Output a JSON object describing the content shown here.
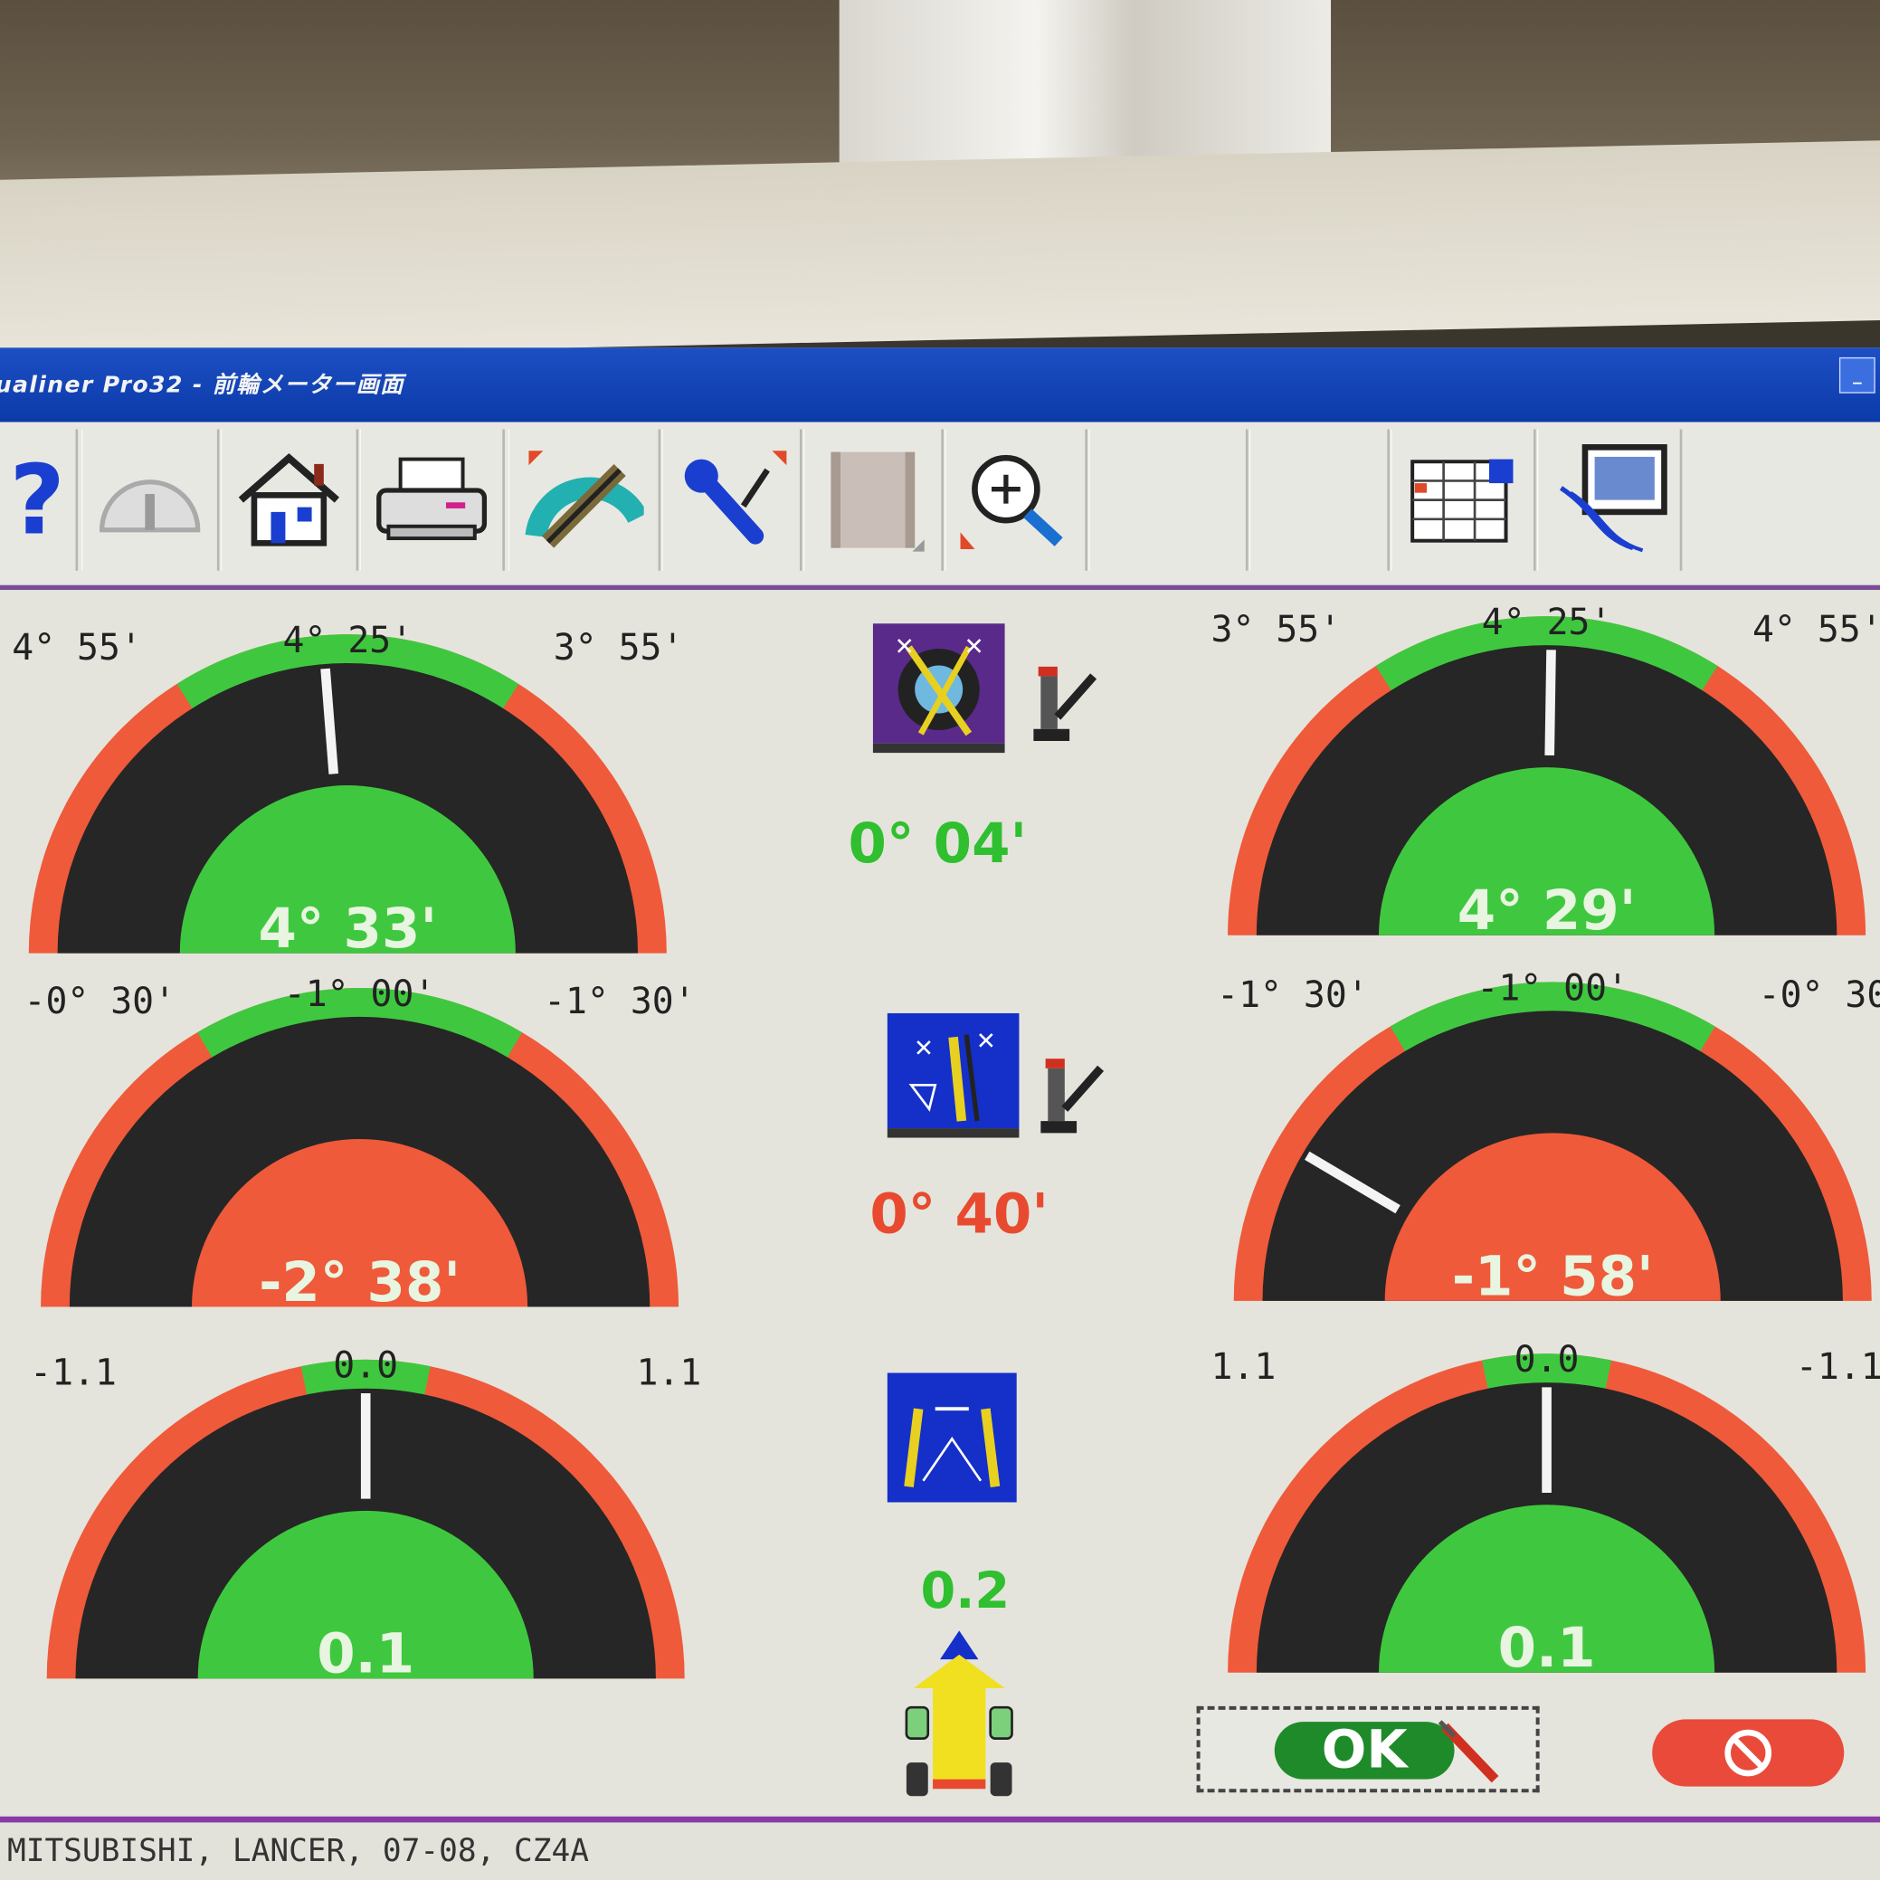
{
  "window": {
    "title": "ualiner Pro32  -  前輪メーター画面"
  },
  "toolbar": {
    "items": [
      {
        "name": "help",
        "icon": "question-mark-icon"
      },
      {
        "name": "meter",
        "icon": "speedometer-icon"
      },
      {
        "name": "home",
        "icon": "home-icon"
      },
      {
        "name": "print",
        "icon": "printer-icon"
      },
      {
        "name": "measure",
        "icon": "protractor-icon"
      },
      {
        "name": "adjust",
        "icon": "wrench-icon"
      },
      {
        "name": "film",
        "icon": "film-icon"
      },
      {
        "name": "zoom",
        "icon": "zoom-in-icon"
      },
      {
        "name": "blank-1",
        "icon": ""
      },
      {
        "name": "blank-2",
        "icon": ""
      },
      {
        "name": "spreadsheet",
        "icon": "spreadsheet-icon"
      },
      {
        "name": "monitor",
        "icon": "monitor-icon"
      }
    ]
  },
  "colors": {
    "in_tolerance": "#3fc83f",
    "out_of_tolerance": "#ef5a3a",
    "dial": "#262626",
    "title_bar": "#1546b8",
    "divider": "#8a3aa6"
  },
  "gauges": [
    {
      "id": "caster-left",
      "label_left": "4° 55'",
      "label_center": "4° 25'",
      "label_right": "3° 55'",
      "value": "4° 33'",
      "status": "green",
      "needle_position": -0.05,
      "tolerance_halfspan": 0.36
    },
    {
      "id": "caster-right",
      "label_left": "3° 55'",
      "label_center": "4° 25'",
      "label_right": "4° 55'",
      "value": "4° 29'",
      "status": "green",
      "needle_position": 0.01,
      "tolerance_halfspan": 0.36
    },
    {
      "id": "camber-left",
      "label_left": "-0° 30'",
      "label_center": "-1° 00'",
      "label_right": "-1° 30'",
      "value": "-2° 38'",
      "status": "red",
      "needle_position": null,
      "tolerance_halfspan": 0.34
    },
    {
      "id": "camber-right",
      "label_left": "-1° 30'",
      "label_center": "-1° 00'",
      "label_right": "-0° 30",
      "value": "-1° 58'",
      "status": "red",
      "needle_position": -0.66,
      "tolerance_halfspan": 0.34
    },
    {
      "id": "toe-left",
      "label_left": "-1.1",
      "label_center": "0.0",
      "label_right": "1.1",
      "value": "0.1",
      "status": "green",
      "needle_position": 0.0,
      "tolerance_halfspan": 0.13
    },
    {
      "id": "toe-right",
      "label_left": "1.1",
      "label_center": "0.0",
      "label_right": "-1.1",
      "value": "0.1",
      "status": "green",
      "needle_position": 0.0,
      "tolerance_halfspan": 0.13
    }
  ],
  "center": {
    "caster_cross": {
      "value": "0° 04'",
      "status": "green",
      "icon": "caster-wheel-icon"
    },
    "camber_cross": {
      "value": "0° 40'",
      "status": "red",
      "icon": "camber-wheel-icon"
    },
    "total_toe": {
      "value": "0.2",
      "status": "green",
      "icon": "toe-wheels-icon"
    }
  },
  "buttons": {
    "ok": "OK",
    "cancel_icon": "prohibited-icon"
  },
  "status": {
    "vehicle": "MITSUBISHI, LANCER, 07-08, CZ4A"
  }
}
